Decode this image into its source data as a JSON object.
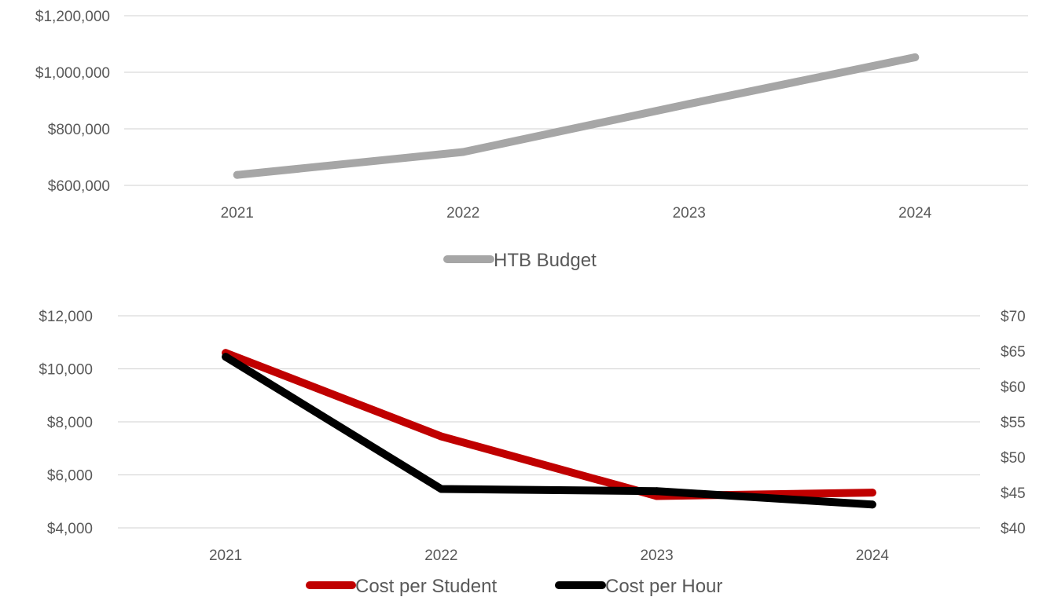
{
  "chart_data": [
    {
      "type": "line",
      "categories": [
        "2021",
        "2022",
        "2023",
        "2024"
      ],
      "ylim": [
        600000,
        1200000
      ],
      "yticks": [
        "$600,000",
        "$800,000",
        "$1,000,000",
        "$1,200,000"
      ],
      "grid": true,
      "legend_position": "bottom",
      "series": [
        {
          "name": "HTB Budget",
          "color": "#a6a6a6",
          "axis": "left",
          "values": [
            637000,
            718000,
            888000,
            1053000
          ]
        }
      ]
    },
    {
      "type": "line",
      "categories": [
        "2021",
        "2022",
        "2023",
        "2024"
      ],
      "ylim": [
        4000,
        12000
      ],
      "y2lim": [
        40,
        70
      ],
      "yticks": [
        "$4,000",
        "$6,000",
        "$8,000",
        "$10,000",
        "$12,000"
      ],
      "y2ticks": [
        "$40",
        "$45",
        "$50",
        "$55",
        "$60",
        "$65",
        "$70"
      ],
      "grid": true,
      "legend_position": "bottom",
      "series": [
        {
          "name": "Cost per Student",
          "color": "#c00000",
          "axis": "left",
          "values": [
            10600,
            7450,
            5200,
            5330
          ]
        },
        {
          "name": "Cost per Hour",
          "color": "#000000",
          "axis": "right",
          "values": [
            64.2,
            45.5,
            45.2,
            43.3
          ]
        }
      ]
    }
  ]
}
